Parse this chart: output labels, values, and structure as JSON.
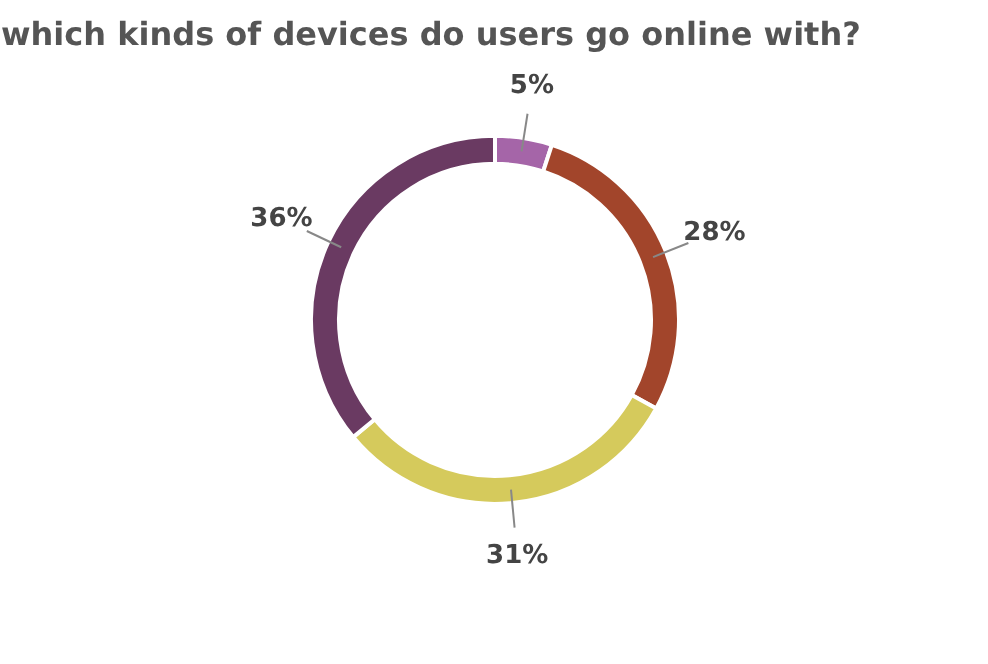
{
  "chart_data": {
    "type": "donut",
    "title": "which kinds of devices do users go online with?",
    "categories": [
      null,
      null,
      null,
      null
    ],
    "values": [
      5,
      28,
      31,
      36
    ],
    "value_labels": [
      "5%",
      "28%",
      "31%",
      "36%"
    ],
    "colors": [
      "#a565a8",
      "#a2452b",
      "#d5ca5c",
      "#6a3a62"
    ]
  }
}
